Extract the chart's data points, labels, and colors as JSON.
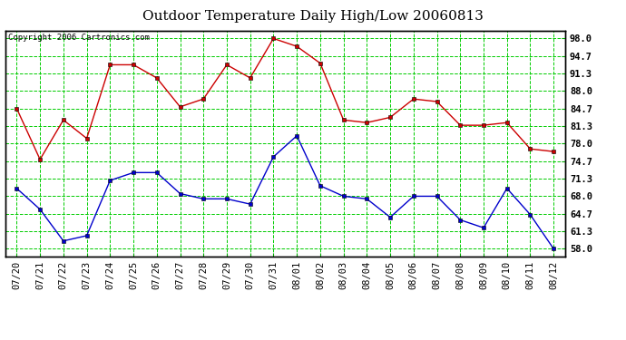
{
  "title": "Outdoor Temperature Daily High/Low 20060813",
  "copyright": "Copyright 2006 Cartronics.com",
  "dates": [
    "07/20",
    "07/21",
    "07/22",
    "07/23",
    "07/24",
    "07/25",
    "07/26",
    "07/27",
    "07/28",
    "07/29",
    "07/30",
    "07/31",
    "08/01",
    "08/02",
    "08/03",
    "08/04",
    "08/05",
    "08/06",
    "08/07",
    "08/08",
    "08/09",
    "08/10",
    "08/11",
    "08/12"
  ],
  "high": [
    84.7,
    75.0,
    82.5,
    79.0,
    93.0,
    93.0,
    90.5,
    85.0,
    86.5,
    93.0,
    90.5,
    98.0,
    96.5,
    93.3,
    82.5,
    82.0,
    83.0,
    86.5,
    86.0,
    81.5,
    81.5,
    82.0,
    77.0,
    76.5
  ],
  "low": [
    69.5,
    65.5,
    59.5,
    60.5,
    71.0,
    72.5,
    72.5,
    68.5,
    67.5,
    67.5,
    66.5,
    75.5,
    79.5,
    70.0,
    68.0,
    67.5,
    64.0,
    68.0,
    68.0,
    63.5,
    62.0,
    69.5,
    64.5,
    58.0
  ],
  "high_color": "#cc0000",
  "low_color": "#0000cc",
  "bg_color": "#ffffff",
  "grid_color": "#00cc00",
  "marker": "s",
  "marker_size": 3,
  "yticks": [
    58.0,
    61.3,
    64.7,
    68.0,
    71.3,
    74.7,
    78.0,
    81.3,
    84.7,
    88.0,
    91.3,
    94.7,
    98.0
  ],
  "ylim": [
    56.5,
    99.5
  ],
  "title_fontsize": 11,
  "tick_fontsize": 7.5,
  "copyright_fontsize": 6.5
}
